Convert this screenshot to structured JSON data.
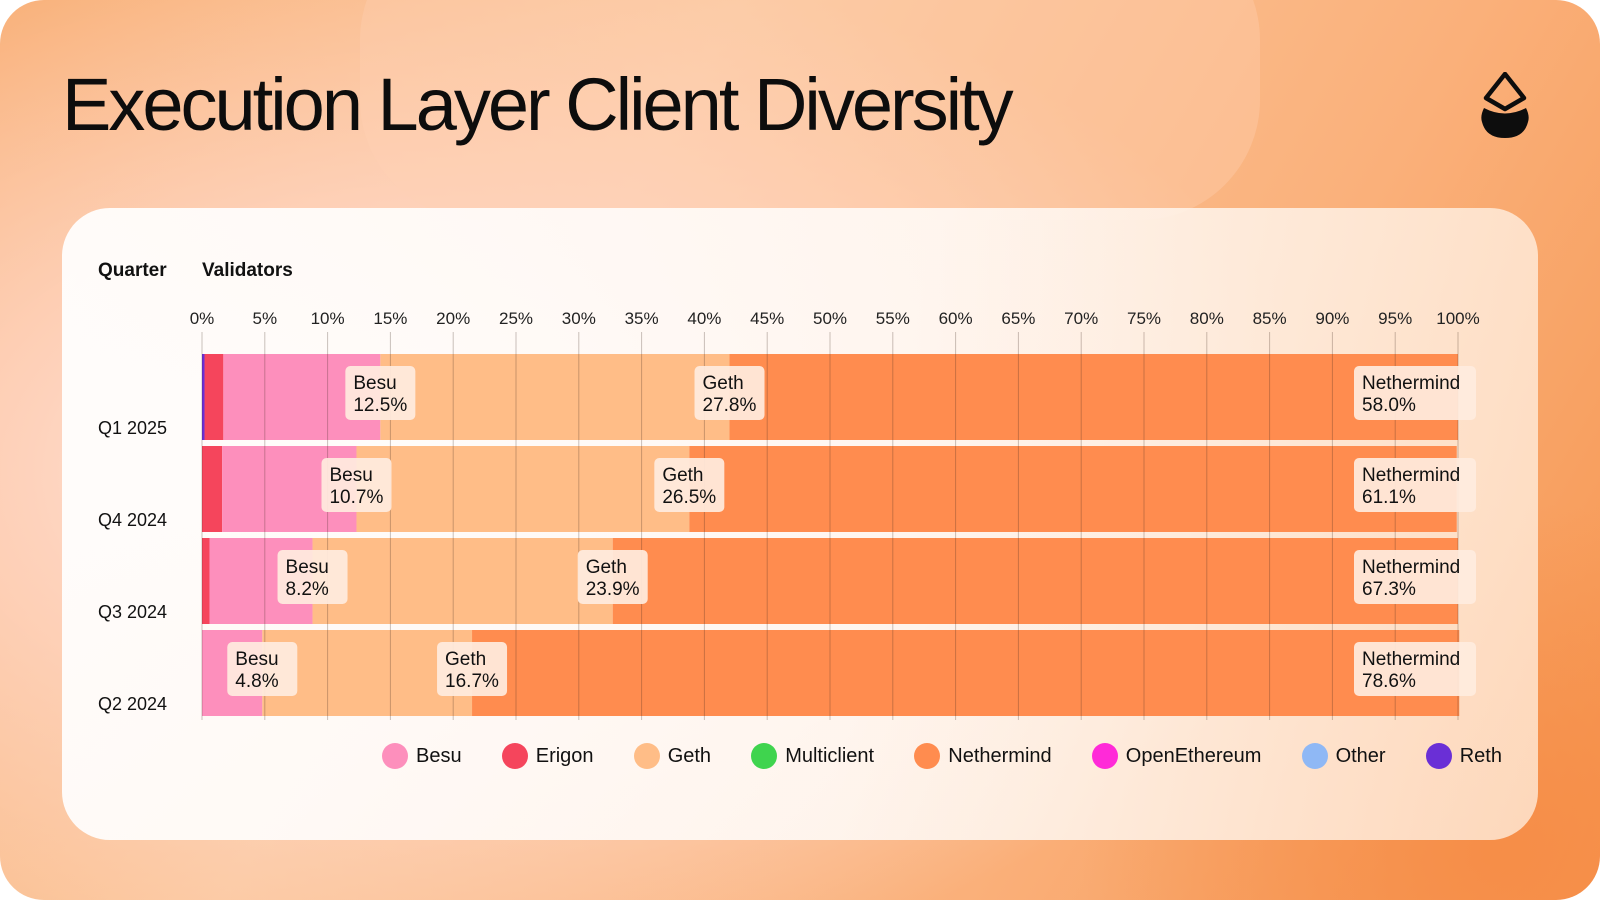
{
  "title": "Execution Layer Client Diversity",
  "logo_icon": "drop-icon",
  "chart_data": {
    "type": "bar",
    "orientation": "horizontal",
    "stacked": true,
    "column_headers": [
      "Quarter",
      "Validators"
    ],
    "categories": [
      "Q1 2025",
      "Q4 2024",
      "Q3 2024",
      "Q2 2024"
    ],
    "x_ticks": [
      "0%",
      "5%",
      "10%",
      "15%",
      "20%",
      "25%",
      "30%",
      "35%",
      "40%",
      "45%",
      "50%",
      "55%",
      "60%",
      "65%",
      "70%",
      "75%",
      "80%",
      "85%",
      "90%",
      "95%",
      "100%"
    ],
    "xlim": [
      0,
      100
    ],
    "grid": true,
    "legend_position": "bottom",
    "series": [
      {
        "name": "Reth",
        "color": "#6a2fd6",
        "values": [
          0.2,
          0,
          0,
          0
        ]
      },
      {
        "name": "Erigon",
        "color": "#f5455c",
        "values": [
          1.5,
          1.6,
          0.6,
          0
        ]
      },
      {
        "name": "Besu",
        "color": "#fd8fbc",
        "values": [
          12.5,
          10.7,
          8.2,
          4.8
        ]
      },
      {
        "name": "Geth",
        "color": "#ffbd87",
        "values": [
          27.8,
          26.5,
          23.9,
          16.7
        ]
      },
      {
        "name": "Nethermind",
        "color": "#ff8c4f",
        "values": [
          58.0,
          61.1,
          67.3,
          78.6
        ]
      }
    ],
    "data_labels": [
      [
        {
          "name": "Besu",
          "value": "12.5%"
        },
        {
          "name": "Geth",
          "value": "27.8%"
        },
        {
          "name": "Nethermind",
          "value": "58.0%"
        }
      ],
      [
        {
          "name": "Besu",
          "value": "10.7%"
        },
        {
          "name": "Geth",
          "value": "26.5%"
        },
        {
          "name": "Nethermind",
          "value": "61.1%"
        }
      ],
      [
        {
          "name": "Besu",
          "value": "8.2%"
        },
        {
          "name": "Geth",
          "value": "23.9%"
        },
        {
          "name": "Nethermind",
          "value": "67.3%"
        }
      ],
      [
        {
          "name": "Besu",
          "value": "4.8%"
        },
        {
          "name": "Geth",
          "value": "16.7%"
        },
        {
          "name": "Nethermind",
          "value": "78.6%"
        }
      ]
    ],
    "legend": [
      {
        "name": "Besu",
        "color": "#fd8fbc"
      },
      {
        "name": "Erigon",
        "color": "#f5455c"
      },
      {
        "name": "Geth",
        "color": "#ffbd87"
      },
      {
        "name": "Multiclient",
        "color": "#3fd44e"
      },
      {
        "name": "Nethermind",
        "color": "#ff8c4f"
      },
      {
        "name": "OpenEthereum",
        "color": "#ff2ad8"
      },
      {
        "name": "Other",
        "color": "#8fb8f5"
      },
      {
        "name": "Reth",
        "color": "#6a2fd6"
      }
    ]
  }
}
